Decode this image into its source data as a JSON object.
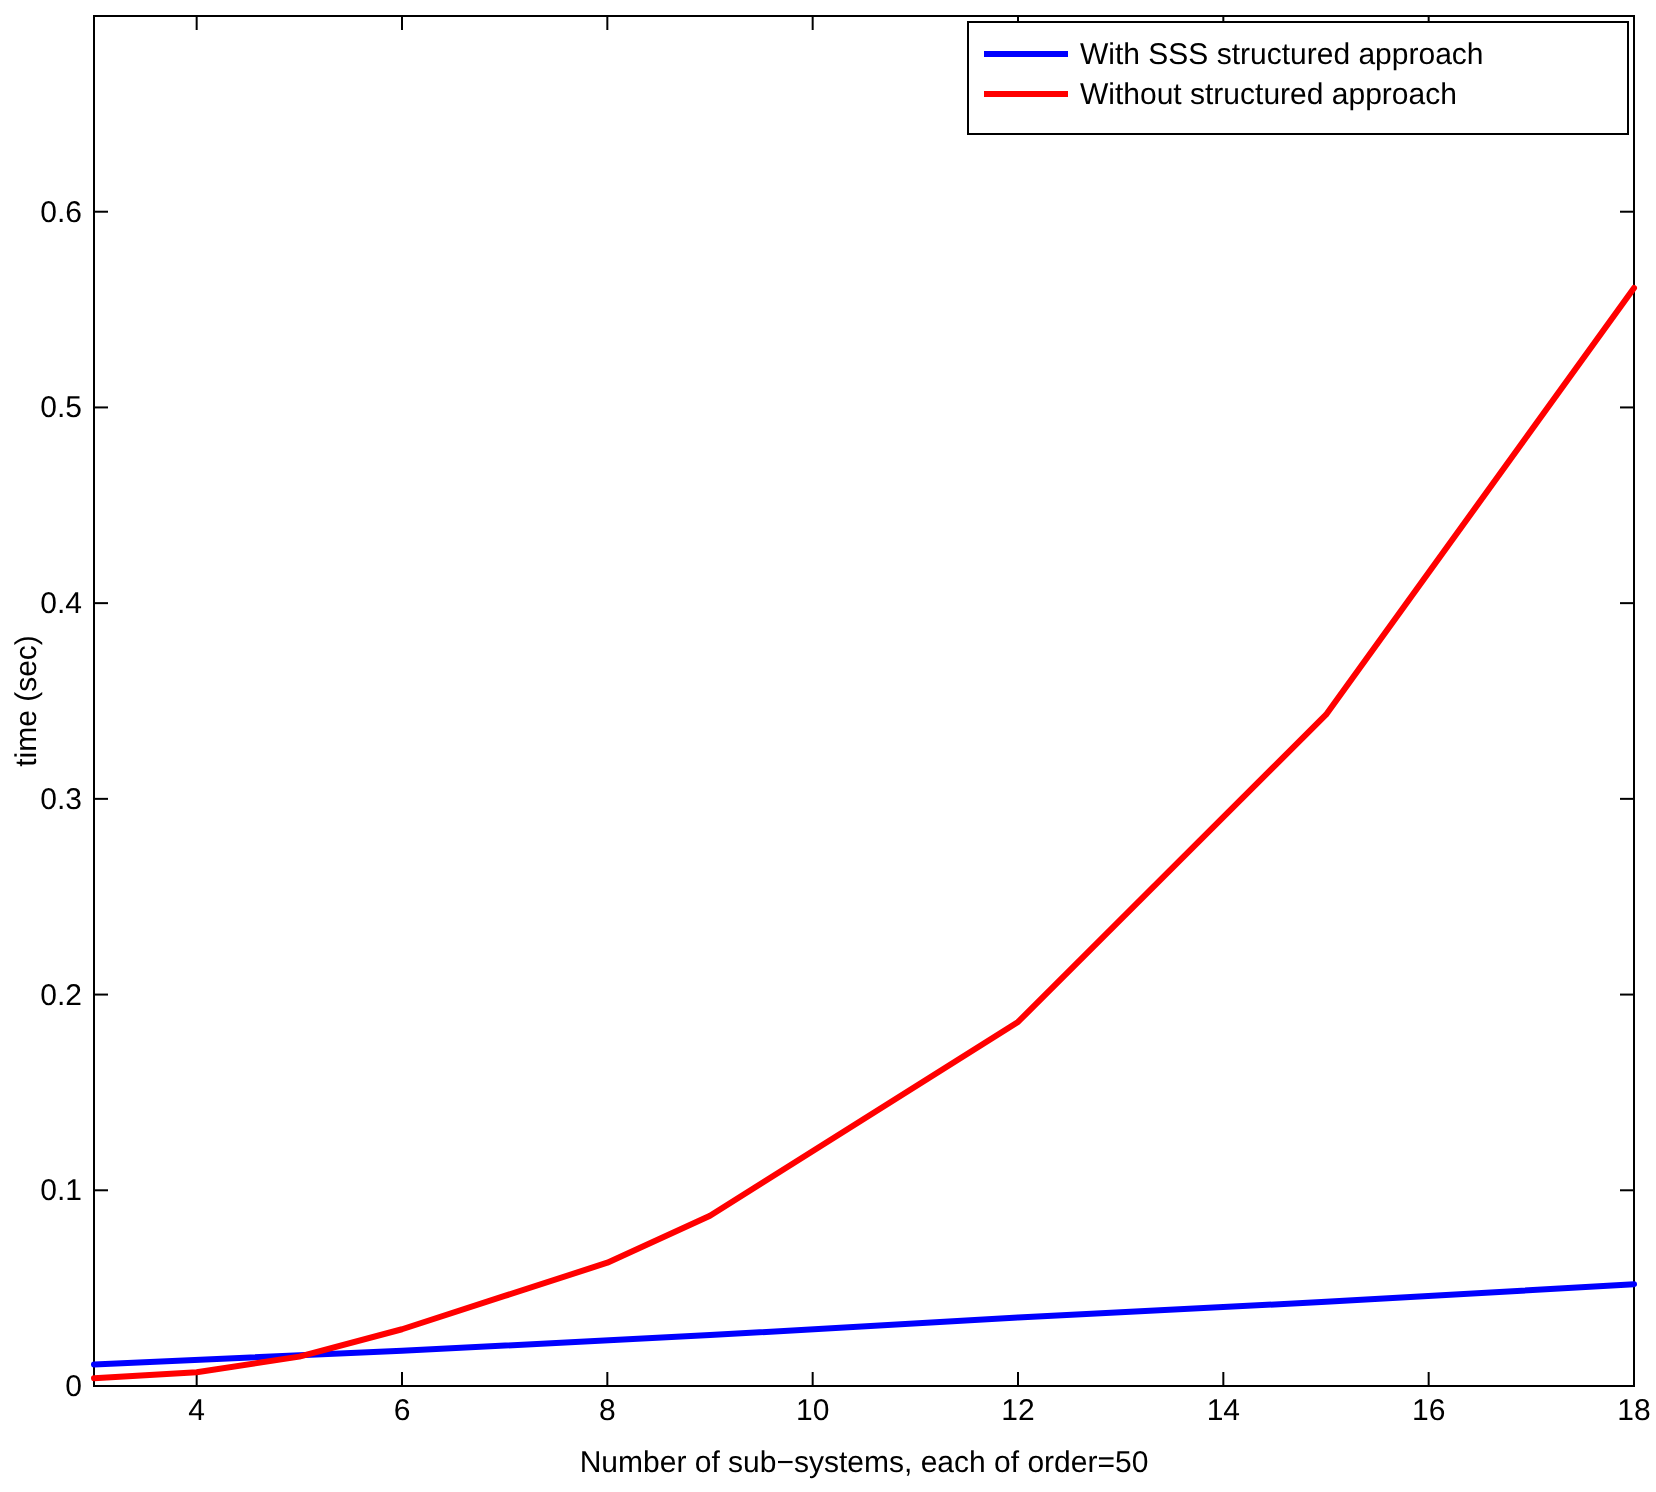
{
  "chart_data": {
    "type": "line",
    "xlabel": "Number of sub−systems, each of order=50",
    "ylabel": "time (sec)",
    "xlim": [
      3,
      18
    ],
    "xticks": [
      4,
      6,
      8,
      10,
      12,
      14,
      16,
      18
    ],
    "ylim": [
      0,
      0.7
    ],
    "yticks": [
      0,
      0.1,
      0.2,
      0.3,
      0.4,
      0.5,
      0.6
    ],
    "grid": false,
    "legend": "top right",
    "line_style": "solid",
    "series": [
      {
        "name": "With SSS structured approach",
        "color": "#0000ff",
        "x": [
          3,
          6,
          9,
          12,
          15,
          18
        ],
        "values": [
          0.011,
          0.018,
          0.026,
          0.035,
          0.043,
          0.052
        ]
      },
      {
        "name": "Without structured approach",
        "color": "#ff0000",
        "x": [
          3,
          4,
          5,
          6,
          7,
          8,
          9,
          12,
          15,
          18
        ],
        "values": [
          0.004,
          0.007,
          0.015,
          0.029,
          0.046,
          0.063,
          0.087,
          0.186,
          0.343,
          0.561
        ]
      }
    ]
  }
}
